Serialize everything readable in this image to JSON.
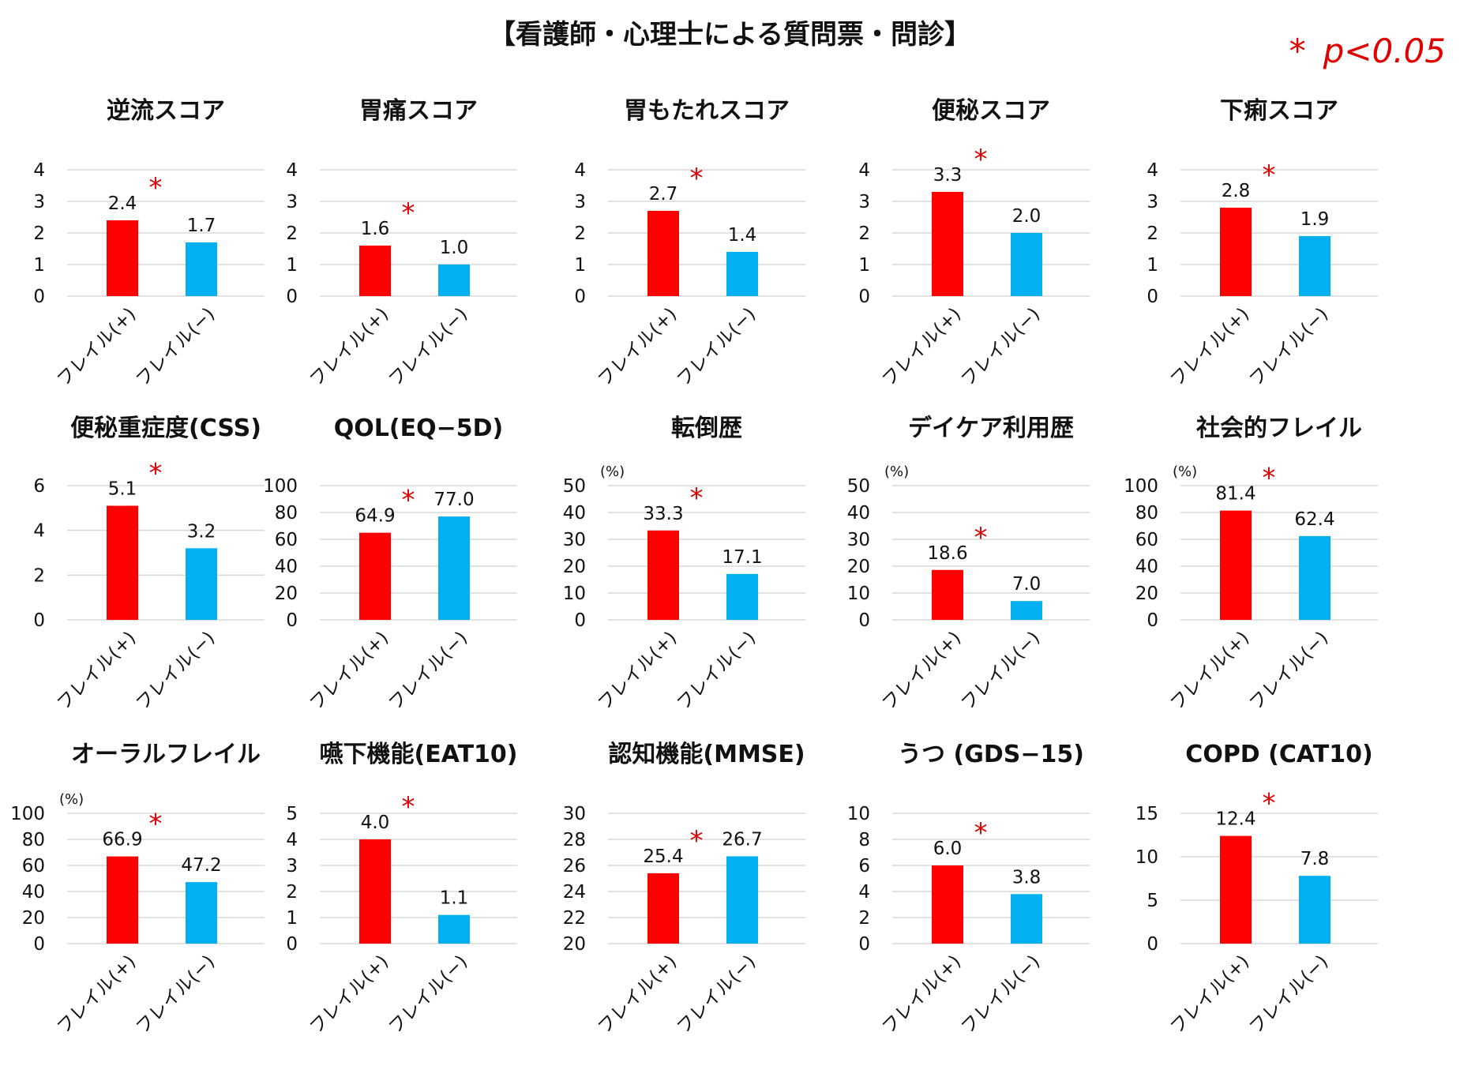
{
  "page": {
    "title": "【看護師・心理士による質問票・問診】",
    "significance_note": {
      "symbol": "*",
      "text": "p<0.05"
    }
  },
  "colors": {
    "frail_positive": "#ff0000",
    "frail_negative": "#00b0f0",
    "star": "#e00000",
    "grid": "#d9d9d9"
  },
  "chart_data": [
    {
      "type": "bar",
      "title": "逆流スコア",
      "unit": "",
      "categories": [
        "フレイル(+)",
        "フレイル(−)"
      ],
      "values": [
        2.4,
        1.7
      ],
      "value_labels": [
        "2.4",
        "1.7"
      ],
      "ylim": [
        0,
        4
      ],
      "yticks": [
        0,
        1,
        2,
        3,
        4
      ],
      "significant": true
    },
    {
      "type": "bar",
      "title": "胃痛スコア",
      "unit": "",
      "categories": [
        "フレイル(+)",
        "フレイル(−)"
      ],
      "values": [
        1.6,
        1.0
      ],
      "value_labels": [
        "1.6",
        "1.0"
      ],
      "ylim": [
        0,
        4
      ],
      "yticks": [
        0,
        1,
        2,
        3,
        4
      ],
      "significant": true
    },
    {
      "type": "bar",
      "title": "胃もたれスコア",
      "unit": "",
      "categories": [
        "フレイル(+)",
        "フレイル(−)"
      ],
      "values": [
        2.7,
        1.4
      ],
      "value_labels": [
        "2.7",
        "1.4"
      ],
      "ylim": [
        0,
        4
      ],
      "yticks": [
        0,
        1,
        2,
        3,
        4
      ],
      "significant": true
    },
    {
      "type": "bar",
      "title": "便秘スコア",
      "unit": "",
      "categories": [
        "フレイル(+)",
        "フレイル(−)"
      ],
      "values": [
        3.3,
        2.0
      ],
      "value_labels": [
        "3.3",
        "2.0"
      ],
      "ylim": [
        0,
        4
      ],
      "yticks": [
        0,
        1,
        2,
        3,
        4
      ],
      "significant": true
    },
    {
      "type": "bar",
      "title": "下痢スコア",
      "unit": "",
      "categories": [
        "フレイル(+)",
        "フレイル(−)"
      ],
      "values": [
        2.8,
        1.9
      ],
      "value_labels": [
        "2.8",
        "1.9"
      ],
      "ylim": [
        0,
        4
      ],
      "yticks": [
        0,
        1,
        2,
        3,
        4
      ],
      "significant": true
    },
    {
      "type": "bar",
      "title": "便秘重症度(CSS)",
      "unit": "",
      "categories": [
        "フレイル(+)",
        "フレイル(−)"
      ],
      "values": [
        5.1,
        3.2
      ],
      "value_labels": [
        "5.1",
        "3.2"
      ],
      "ylim": [
        0,
        6
      ],
      "yticks": [
        0,
        2,
        4,
        6
      ],
      "significant": true
    },
    {
      "type": "bar",
      "title": "QOL(EQ−5D)",
      "unit": "",
      "categories": [
        "フレイル(+)",
        "フレイル(−)"
      ],
      "values": [
        64.9,
        77.0
      ],
      "value_labels": [
        "64.9",
        "77.0"
      ],
      "ylim": [
        0,
        100
      ],
      "yticks": [
        0,
        20,
        40,
        60,
        80,
        100
      ],
      "significant": true
    },
    {
      "type": "bar",
      "title": "転倒歴",
      "unit": "(%)",
      "categories": [
        "フレイル(+)",
        "フレイル(−)"
      ],
      "values": [
        33.3,
        17.1
      ],
      "value_labels": [
        "33.3",
        "17.1"
      ],
      "ylim": [
        0,
        50
      ],
      "yticks": [
        0,
        10,
        20,
        30,
        40,
        50
      ],
      "significant": true
    },
    {
      "type": "bar",
      "title": "デイケア利用歴",
      "unit": "(%)",
      "categories": [
        "フレイル(+)",
        "フレイル(−)"
      ],
      "values": [
        18.6,
        7.0
      ],
      "value_labels": [
        "18.6",
        "7.0"
      ],
      "ylim": [
        0,
        50
      ],
      "yticks": [
        0,
        10,
        20,
        30,
        40,
        50
      ],
      "significant": true
    },
    {
      "type": "bar",
      "title": "社会的フレイル",
      "unit": "(%)",
      "categories": [
        "フレイル(+)",
        "フレイル(−)"
      ],
      "values": [
        81.4,
        62.4
      ],
      "value_labels": [
        "81.4",
        "62.4"
      ],
      "ylim": [
        0,
        100
      ],
      "yticks": [
        0,
        20,
        40,
        60,
        80,
        100
      ],
      "significant": true
    },
    {
      "type": "bar",
      "title": "オーラルフレイル",
      "unit": "(%)",
      "categories": [
        "フレイル(+)",
        "フレイル(−)"
      ],
      "values": [
        66.9,
        47.2
      ],
      "value_labels": [
        "66.9",
        "47.2"
      ],
      "ylim": [
        0,
        100
      ],
      "yticks": [
        0,
        20,
        40,
        60,
        80,
        100
      ],
      "significant": true
    },
    {
      "type": "bar",
      "title": "嚥下機能(EAT10)",
      "unit": "",
      "categories": [
        "フレイル(+)",
        "フレイル(−)"
      ],
      "values": [
        4.0,
        1.1
      ],
      "value_labels": [
        "4.0",
        "1.1"
      ],
      "ylim": [
        0,
        5
      ],
      "yticks": [
        0,
        1,
        2,
        3,
        4,
        5
      ],
      "significant": true
    },
    {
      "type": "bar",
      "title": "認知機能(MMSE)",
      "unit": "",
      "categories": [
        "フレイル(+)",
        "フレイル(−)"
      ],
      "values": [
        25.4,
        26.7
      ],
      "value_labels": [
        "25.4",
        "26.7"
      ],
      "ylim": [
        20,
        30
      ],
      "yticks": [
        20,
        22,
        24,
        26,
        28,
        30
      ],
      "significant": true
    },
    {
      "type": "bar",
      "title": "うつ (GDS−15)",
      "unit": "",
      "categories": [
        "フレイル(+)",
        "フレイル(−)"
      ],
      "values": [
        6.0,
        3.8
      ],
      "value_labels": [
        "6.0",
        "3.8"
      ],
      "ylim": [
        0,
        10
      ],
      "yticks": [
        0,
        2,
        4,
        6,
        8,
        10
      ],
      "significant": true
    },
    {
      "type": "bar",
      "title": "COPD (CAT10)",
      "unit": "",
      "categories": [
        "フレイル(+)",
        "フレイル(−)"
      ],
      "values": [
        12.4,
        7.8
      ],
      "value_labels": [
        "12.4",
        "7.8"
      ],
      "ylim": [
        0,
        15
      ],
      "yticks": [
        0,
        5,
        10,
        15
      ],
      "significant": true
    }
  ]
}
